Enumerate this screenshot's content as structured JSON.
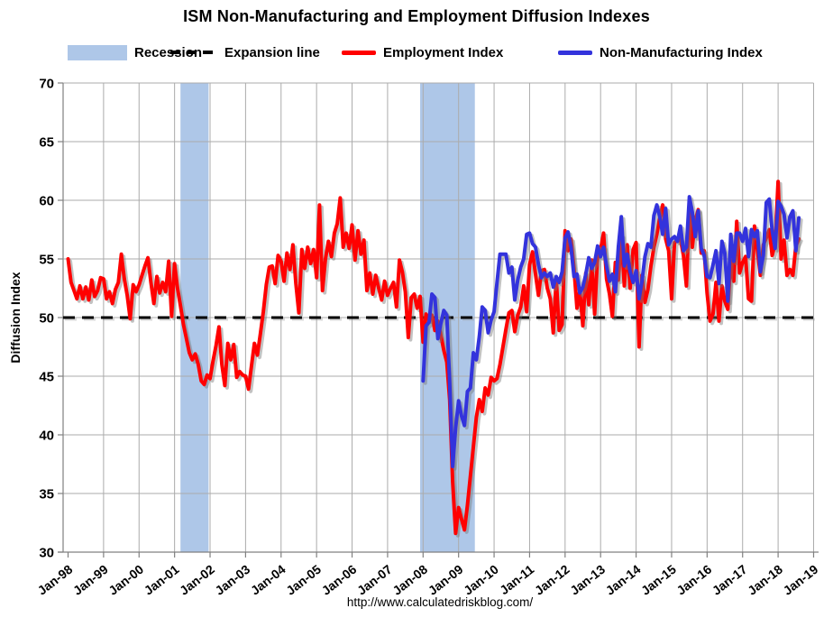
{
  "title": "ISM Non-Manufacturing and Employment Diffusion Indexes",
  "source_url": "http://www.calculatedriskblog.com/",
  "legend": {
    "recession_label": "Recession",
    "expansion_label": "Expansion line",
    "employment_label": "Employment Index",
    "nonmanufacturing_label": "Non-Manufacturing Index"
  },
  "colors": {
    "employment": "#FF0000",
    "non_manufacturing": "#3333DC",
    "recession_band": "#AEC7E8",
    "expansion_line": "#000000",
    "gridline": "#ABABAB",
    "axis": "#808080",
    "shadow": "rgba(120,120,120,0.45)"
  },
  "chart_data": {
    "type": "line",
    "title": "ISM Non-Manufacturing and Employment Diffusion Indexes",
    "xlabel": "",
    "ylabel": "Diffusion Index",
    "ylim": [
      30,
      70
    ],
    "y_ticks": [
      30,
      35,
      40,
      45,
      50,
      55,
      60,
      65,
      70
    ],
    "x_tick_labels": [
      "Jan-98",
      "Jan-99",
      "Jan-00",
      "Jan-01",
      "Jan-02",
      "Jan-03",
      "Jan-04",
      "Jan-05",
      "Jan-06",
      "Jan-07",
      "Jan-08",
      "Jan-09",
      "Jan-10",
      "Jan-11",
      "Jan-12",
      "Jan-13",
      "Jan-14",
      "Jan-15",
      "Jan-16",
      "Jan-17",
      "Jan-18",
      "Jan-19"
    ],
    "frequency": "monthly",
    "grid": true,
    "legend_position": "top",
    "expansion_line_value": 50,
    "recessions": [
      {
        "start": "2001-03",
        "end": "2001-12"
      },
      {
        "start": "2007-12",
        "end": "2009-06"
      }
    ],
    "series": [
      {
        "name": "Employment Index",
        "color": "#FF0000",
        "start": "1998-01",
        "values": [
          55.0,
          53.0,
          52.3,
          51.6,
          52.7,
          51.6,
          52.6,
          51.5,
          53.2,
          51.8,
          52.3,
          53.4,
          53.3,
          51.6,
          52.2,
          51.2,
          52.4,
          53.0,
          55.4,
          53.3,
          51.9,
          49.9,
          52.8,
          52.2,
          52.8,
          53.6,
          54.4,
          55.1,
          53.0,
          51.2,
          53.5,
          52.1,
          53.0,
          52.2,
          54.8,
          50.1,
          54.6,
          52.5,
          51.0,
          49.4,
          48.2,
          47.0,
          46.4,
          46.9,
          46.0,
          44.6,
          44.3,
          45.1,
          44.8,
          46.3,
          47.6,
          49.2,
          46.0,
          44.2,
          47.8,
          46.4,
          47.7,
          44.9,
          45.4,
          45.1,
          45.0,
          43.9,
          45.9,
          47.8,
          46.8,
          48.6,
          50.5,
          52.8,
          54.3,
          54.4,
          52.9,
          55.3,
          54.8,
          53.1,
          55.5,
          54.1,
          56.2,
          52.9,
          50.4,
          55.8,
          54.2,
          56.0,
          54.6,
          55.8,
          53.4,
          59.6,
          52.3,
          55.0,
          56.5,
          55.2,
          57.2,
          58.0,
          60.2,
          56.0,
          57.2,
          55.9,
          57.9,
          54.9,
          57.4,
          55.4,
          56.6,
          52.3,
          53.8,
          52.0,
          53.6,
          52.5,
          51.5,
          53.1,
          51.9,
          52.5,
          53.0,
          50.9,
          54.9,
          53.9,
          52.2,
          48.3,
          51.7,
          52.0,
          50.8,
          51.8,
          47.9,
          50.3,
          49.8,
          50.2,
          48.9,
          49.7,
          48.5,
          47.2,
          46.2,
          43.0,
          36.0,
          31.6,
          33.8,
          32.8,
          31.9,
          34.0,
          36.5,
          39.0,
          41.5,
          43.0,
          42.0,
          44.0,
          43.4,
          44.9,
          44.6,
          44.8,
          46.0,
          47.5,
          49.0,
          50.4,
          50.6,
          48.8,
          50.2,
          50.9,
          52.7,
          50.5,
          54.5,
          55.6,
          53.7,
          51.9,
          54.0,
          54.1,
          52.5,
          51.6,
          48.7,
          53.3,
          48.9,
          49.4,
          57.4,
          55.7,
          56.7,
          54.2,
          50.8,
          52.3,
          49.3,
          53.8,
          51.1,
          54.9,
          50.3,
          55.3,
          55.8,
          57.2,
          53.3,
          52.0,
          50.1,
          54.7,
          53.2,
          57.0,
          52.7,
          56.2,
          52.5,
          55.8,
          56.4,
          47.5,
          53.6,
          51.3,
          52.4,
          54.4,
          56.0,
          57.1,
          58.5,
          59.6,
          56.7,
          55.7,
          51.6,
          56.4,
          56.6,
          56.7,
          55.3,
          52.7,
          59.6,
          56.0,
          58.3,
          59.2,
          55.5,
          55.7,
          52.1,
          49.7,
          50.3,
          53.0,
          49.7,
          52.7,
          51.4,
          50.7,
          54.9,
          53.1,
          58.2,
          53.8,
          54.7,
          55.2,
          51.6,
          51.4,
          57.8,
          55.8,
          53.6,
          56.2,
          56.8,
          57.5,
          55.3,
          56.3,
          61.6,
          55.0,
          56.6,
          53.6,
          54.1,
          53.6,
          56.1,
          56.7
        ]
      },
      {
        "name": "Non-Manufacturing Index",
        "color": "#3333DC",
        "start": "2008-01",
        "values": [
          44.6,
          49.3,
          49.6,
          52.0,
          51.7,
          48.2,
          49.5,
          50.6,
          50.2,
          44.4,
          37.3,
          40.6,
          42.9,
          41.6,
          40.8,
          43.7,
          44.0,
          47.0,
          46.4,
          48.4,
          50.9,
          50.6,
          48.7,
          49.8,
          50.5,
          53.0,
          55.4,
          55.4,
          55.4,
          53.8,
          54.3,
          51.5,
          53.2,
          54.3,
          55.0,
          57.1,
          57.2,
          56.3,
          56.0,
          54.5,
          53.4,
          53.8,
          53.5,
          53.8,
          52.6,
          53.5,
          53.0,
          53.9,
          56.8,
          57.3,
          56.0,
          53.5,
          53.7,
          52.1,
          52.6,
          53.7,
          55.1,
          54.2,
          54.7,
          56.1,
          55.2,
          56.0,
          54.4,
          53.1,
          53.7,
          52.2,
          56.0,
          58.6,
          54.4,
          55.4,
          53.9,
          53.0,
          54.0,
          51.6,
          53.1,
          55.2,
          56.3,
          56.0,
          58.7,
          59.6,
          58.6,
          57.1,
          59.3,
          56.2,
          56.7,
          56.9,
          56.5,
          57.8,
          55.7,
          56.0,
          60.3,
          59.0,
          56.9,
          59.1,
          55.9,
          55.3,
          53.5,
          53.4,
          54.5,
          55.7,
          52.9,
          56.5,
          55.5,
          51.4,
          57.1,
          54.8,
          57.2,
          57.2,
          56.5,
          57.6,
          55.2,
          57.5,
          56.9,
          57.4,
          53.9,
          55.3,
          59.8,
          60.1,
          57.4,
          55.9,
          59.9,
          59.5,
          58.8,
          56.8,
          58.6,
          59.1,
          55.7,
          58.5
        ]
      }
    ]
  }
}
